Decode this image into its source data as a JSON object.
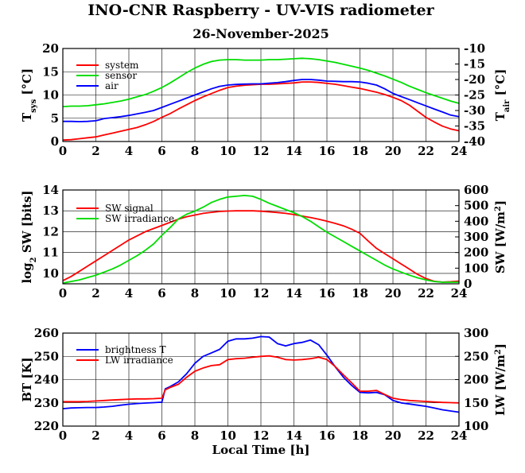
{
  "title": "INO-CNR Raspberry - UV-VIS radiometer",
  "subtitle": "26-November-2025",
  "chart_data": [
    {
      "type": "line",
      "panel": "temperatures",
      "xlim": [
        0,
        24
      ],
      "xticks": [
        "0",
        "2",
        "4",
        "6",
        "8",
        "10",
        "12",
        "14",
        "16",
        "18",
        "20",
        "22",
        "24"
      ],
      "ylim": [
        0,
        20
      ],
      "yticks": [
        "0",
        "5",
        "10",
        "15",
        "20"
      ],
      "ylabel": "T",
      "ylabel_sub": "sys",
      "ylabel_unit": " [°C]",
      "y2lim": [
        -40,
        -10
      ],
      "y2ticks": [
        "-40",
        "-35",
        "-30",
        "-25",
        "-20",
        "-15",
        "-10"
      ],
      "y2label": "T",
      "y2label_sub": "air",
      "y2label_unit": " [°C]",
      "series": [
        {
          "name": "system",
          "color": "#ff0000",
          "axis": "left",
          "x": [
            0,
            0.5,
            1,
            1.5,
            2,
            2.5,
            3,
            3.5,
            4,
            4.5,
            5,
            5.5,
            6,
            6.5,
            7,
            7.5,
            8,
            8.5,
            9,
            9.5,
            10,
            10.5,
            11,
            11.5,
            12,
            12.5,
            13,
            13.5,
            14,
            14.5,
            15,
            15.5,
            16,
            16.5,
            17,
            17.5,
            18,
            18.5,
            19,
            19.5,
            20,
            20.5,
            21,
            21.5,
            22,
            22.5,
            23,
            23.5,
            24
          ],
          "values": [
            0.3,
            0.4,
            0.6,
            0.8,
            1.0,
            1.4,
            1.8,
            2.2,
            2.6,
            3.0,
            3.6,
            4.3,
            5.2,
            6.0,
            7.0,
            7.9,
            8.8,
            9.6,
            10.3,
            11.0,
            11.6,
            11.9,
            12.1,
            12.2,
            12.3,
            12.3,
            12.4,
            12.5,
            12.6,
            12.8,
            12.8,
            12.7,
            12.5,
            12.3,
            12.0,
            11.7,
            11.4,
            11.0,
            10.6,
            10.1,
            9.5,
            8.8,
            7.8,
            6.5,
            5.2,
            4.2,
            3.3,
            2.7,
            2.3
          ]
        },
        {
          "name": "sensor",
          "color": "#00dd00",
          "axis": "left",
          "x": [
            0,
            0.5,
            1,
            1.5,
            2,
            2.5,
            3,
            3.5,
            4,
            4.5,
            5,
            5.5,
            6,
            6.5,
            7,
            7.5,
            8,
            8.5,
            9,
            9.5,
            10,
            10.5,
            11,
            11.5,
            12,
            12.5,
            13,
            13.5,
            14,
            14.5,
            15,
            15.5,
            16,
            16.5,
            17,
            17.5,
            18,
            18.5,
            19,
            19.5,
            20,
            20.5,
            21,
            21.5,
            22,
            22.5,
            23,
            23.5,
            24
          ],
          "values": [
            7.5,
            7.6,
            7.6,
            7.7,
            7.9,
            8.1,
            8.4,
            8.7,
            9.1,
            9.6,
            10.1,
            10.8,
            11.6,
            12.6,
            13.7,
            14.8,
            15.8,
            16.6,
            17.2,
            17.5,
            17.6,
            17.6,
            17.5,
            17.5,
            17.5,
            17.6,
            17.6,
            17.7,
            17.8,
            17.9,
            17.8,
            17.6,
            17.3,
            17.0,
            16.6,
            16.2,
            15.8,
            15.3,
            14.7,
            14.1,
            13.4,
            12.7,
            11.9,
            11.2,
            10.5,
            9.9,
            9.3,
            8.7,
            8.2
          ]
        },
        {
          "name": "air",
          "color": "#0000ff",
          "axis": "right",
          "x": [
            0,
            0.5,
            1,
            1.5,
            2,
            2.5,
            3,
            3.5,
            4,
            4.5,
            5,
            5.5,
            6,
            6.5,
            7,
            7.5,
            8,
            8.5,
            9,
            9.5,
            10,
            10.5,
            11,
            11.5,
            12,
            12.5,
            13,
            13.5,
            14,
            14.5,
            15,
            15.5,
            16,
            16.5,
            17,
            17.5,
            18,
            18.5,
            19,
            19.5,
            20,
            20.5,
            21,
            21.5,
            22,
            22.5,
            23,
            23.5,
            24
          ],
          "values": [
            -33.5,
            -33.5,
            -33.6,
            -33.5,
            -33.3,
            -32.6,
            -32.3,
            -32.0,
            -31.6,
            -31.1,
            -30.6,
            -30.0,
            -29.0,
            -28.0,
            -27.0,
            -26.0,
            -25.0,
            -24.0,
            -23.0,
            -22.2,
            -21.8,
            -21.6,
            -21.5,
            -21.4,
            -21.4,
            -21.2,
            -21.0,
            -20.7,
            -20.3,
            -20.0,
            -20.0,
            -20.2,
            -20.5,
            -20.6,
            -20.7,
            -20.7,
            -20.8,
            -21.2,
            -21.8,
            -23.0,
            -24.5,
            -25.5,
            -26.5,
            -27.5,
            -28.5,
            -29.5,
            -30.5,
            -31.5,
            -32.0
          ]
        }
      ]
    },
    {
      "type": "line",
      "panel": "shortwave",
      "xlim": [
        0,
        24
      ],
      "xticks": [
        "0",
        "2",
        "4",
        "6",
        "8",
        "10",
        "12",
        "14",
        "16",
        "18",
        "20",
        "22",
        "24"
      ],
      "ylim": [
        9.5,
        14
      ],
      "yticks": [
        "10",
        "11",
        "12",
        "13",
        "14"
      ],
      "ylabel": "log",
      "ylabel_sub": "2",
      "ylabel_unit": " SW [bits]",
      "y2lim": [
        0,
        600
      ],
      "y2ticks": [
        "0",
        "100",
        "200",
        "300",
        "400",
        "500",
        "600"
      ],
      "y2label": "SW [W/m",
      "y2label_sup": "2",
      "y2label_unit": "]",
      "series": [
        {
          "name": "SW signal",
          "color": "#ff0000",
          "axis": "left",
          "x": [
            0,
            0.5,
            1,
            1.5,
            2,
            2.5,
            3,
            3.5,
            4,
            4.5,
            5,
            5.5,
            6,
            6.5,
            7,
            7.5,
            8,
            8.5,
            9,
            9.5,
            10,
            10.5,
            11,
            11.5,
            12,
            12.5,
            13,
            13.5,
            14,
            14.5,
            15,
            15.5,
            16,
            16.5,
            17,
            17.5,
            18,
            18.5,
            19,
            19.5,
            20,
            20.5,
            21,
            21.5,
            22,
            22.5,
            23,
            23.5,
            24
          ],
          "values": [
            9.65,
            9.85,
            10.1,
            10.35,
            10.6,
            10.85,
            11.1,
            11.35,
            11.6,
            11.8,
            12.0,
            12.15,
            12.3,
            12.45,
            12.6,
            12.72,
            12.8,
            12.88,
            12.93,
            12.97,
            12.99,
            13.0,
            13.0,
            13.0,
            12.98,
            12.95,
            12.92,
            12.88,
            12.82,
            12.75,
            12.68,
            12.6,
            12.5,
            12.4,
            12.28,
            12.12,
            11.92,
            11.55,
            11.2,
            10.95,
            10.7,
            10.45,
            10.2,
            9.95,
            9.75,
            9.62,
            9.58,
            9.6,
            9.63
          ]
        },
        {
          "name": "SW irradiance",
          "color": "#00dd00",
          "axis": "right",
          "x": [
            0,
            0.5,
            1,
            1.5,
            2,
            2.5,
            3,
            3.5,
            4,
            4.5,
            5,
            5.5,
            6,
            6.5,
            7,
            7.5,
            8,
            8.5,
            9,
            9.5,
            10,
            10.5,
            11,
            11.5,
            12,
            12.5,
            13,
            13.5,
            14,
            14.5,
            15,
            15.5,
            16,
            16.5,
            17,
            17.5,
            18,
            18.5,
            19,
            19.5,
            20,
            20.5,
            21,
            21.5,
            22,
            22.5,
            23,
            23.5,
            24
          ],
          "values": [
            5,
            15,
            25,
            40,
            55,
            75,
            95,
            120,
            150,
            180,
            215,
            255,
            310,
            360,
            415,
            445,
            465,
            490,
            520,
            540,
            555,
            560,
            565,
            560,
            540,
            515,
            495,
            475,
            455,
            430,
            400,
            365,
            330,
            300,
            270,
            240,
            210,
            180,
            150,
            120,
            95,
            75,
            55,
            38,
            25,
            15,
            10,
            10,
            10
          ]
        }
      ]
    },
    {
      "type": "line",
      "panel": "longwave",
      "xlim": [
        0,
        24
      ],
      "xticks": [
        "0",
        "2",
        "4",
        "6",
        "8",
        "10",
        "12",
        "14",
        "16",
        "18",
        "20",
        "22",
        "24"
      ],
      "xlabel": "Local Time [h]",
      "ylim": [
        220,
        260
      ],
      "yticks": [
        "220",
        "230",
        "240",
        "250",
        "260"
      ],
      "ylabel": "BT [K]",
      "y2lim": [
        100,
        300
      ],
      "y2ticks": [
        "100",
        "150",
        "200",
        "250",
        "300"
      ],
      "y2label": "LW [W/m",
      "y2label_sup": "2",
      "y2label_unit": "]",
      "series": [
        {
          "name": "brightness T",
          "color": "#0000ff",
          "axis": "left",
          "x": [
            0,
            0.5,
            1,
            1.5,
            2,
            2.5,
            3,
            3.5,
            4,
            4.5,
            5,
            5.5,
            6,
            6.2,
            6.5,
            7,
            7.5,
            8,
            8.5,
            9,
            9.5,
            10,
            10.5,
            11,
            11.5,
            12,
            12.5,
            13,
            13.5,
            14,
            14.5,
            15,
            15.5,
            16,
            16.5,
            17,
            17.5,
            18,
            18.5,
            19,
            19.5,
            20,
            20.5,
            21,
            21.5,
            22,
            22.5,
            23,
            23.5,
            24
          ],
          "values": [
            227.5,
            227.8,
            227.9,
            228.0,
            228.0,
            228.2,
            228.5,
            229.0,
            229.4,
            229.7,
            229.9,
            230.1,
            230.3,
            236.0,
            237.0,
            239.0,
            242.5,
            247.0,
            250.0,
            251.5,
            253.0,
            256.5,
            257.5,
            257.5,
            257.8,
            258.5,
            258.3,
            255.5,
            254.5,
            255.5,
            256.0,
            257.0,
            255.0,
            250.5,
            245.5,
            241.0,
            237.5,
            234.5,
            234.3,
            234.5,
            233.5,
            231.0,
            230.0,
            229.5,
            229.0,
            228.5,
            227.8,
            227.0,
            226.5,
            226.0
          ]
        },
        {
          "name": "LW irradiance",
          "color": "#ff0000",
          "axis": "right",
          "x": [
            0,
            0.5,
            1,
            1.5,
            2,
            2.5,
            3,
            3.5,
            4,
            4.5,
            5,
            5.5,
            6,
            6.2,
            6.5,
            7,
            7.5,
            8,
            8.5,
            9,
            9.5,
            10,
            10.5,
            11,
            11.5,
            12,
            12.5,
            13,
            13.5,
            14,
            14.5,
            15,
            15.5,
            16,
            16.5,
            17,
            17.5,
            18,
            18.5,
            19,
            19.5,
            20,
            20.5,
            21,
            21.5,
            22,
            22.5,
            23,
            23.5,
            24
          ],
          "values": [
            152.5,
            152.5,
            152.5,
            153.0,
            154.0,
            155.0,
            156.0,
            157.0,
            158.0,
            158.5,
            158.5,
            159.0,
            160.0,
            178.0,
            183.0,
            190.0,
            205.0,
            218.0,
            225.0,
            230.0,
            232.0,
            243.0,
            245.0,
            246.0,
            248.0,
            250.0,
            251.0,
            248.0,
            243.0,
            242.0,
            243.0,
            245.0,
            248.0,
            243.0,
            228.0,
            210.0,
            193.0,
            175.0,
            175.0,
            176.5,
            168.0,
            160.0,
            157.0,
            155.0,
            154.0,
            153.0,
            152.0,
            151.0,
            150.5,
            150.0
          ]
        }
      ]
    }
  ]
}
